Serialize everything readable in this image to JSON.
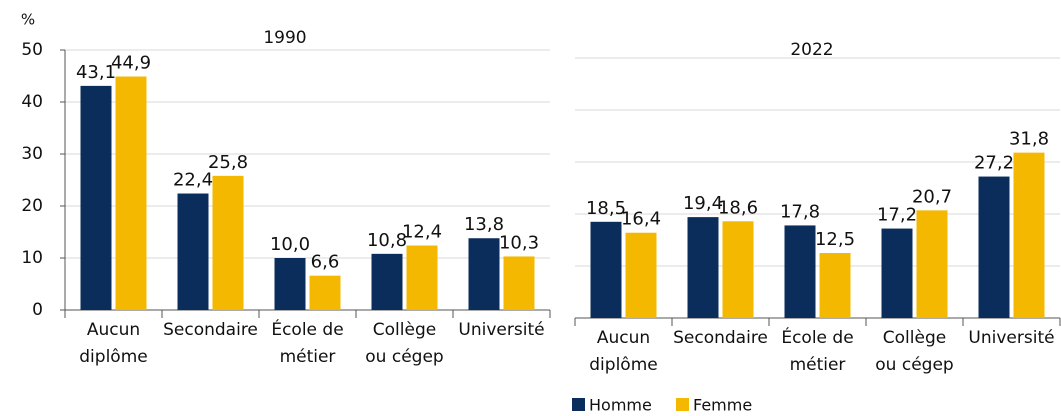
{
  "chart_data": [
    {
      "type": "bar",
      "title": "1990",
      "y_label": "%",
      "categories": [
        "Aucun\ndiplôme",
        "Secondaire",
        "École de\nmétier",
        "Collège\nou cégep",
        "Université"
      ],
      "series": [
        {
          "color": "#0b2d5b",
          "values": [
            43.1,
            22.4,
            10.0,
            10.8,
            13.8
          ],
          "value_labels": [
            "43,1",
            "22,4",
            "10,0",
            "10,8",
            "13,8"
          ]
        },
        {
          "color": "#f5b800",
          "values": [
            44.9,
            25.8,
            6.6,
            12.4,
            10.3
          ],
          "value_labels": [
            "44,9",
            "25,8",
            "6,6",
            "12,4",
            "10,3"
          ]
        }
      ],
      "ylim": [
        0,
        50
      ],
      "yticks": [
        0,
        10,
        20,
        30,
        40,
        50
      ],
      "grid": true
    },
    {
      "type": "bar",
      "title": "2022",
      "categories": [
        "Aucun\ndiplôme",
        "Secondaire",
        "École de\nmétier",
        "Collège\nou cégep",
        "Université"
      ],
      "series": [
        {
          "name": "Homme",
          "color": "#0b2d5b",
          "values": [
            18.5,
            19.4,
            17.8,
            17.2,
            27.2
          ],
          "value_labels": [
            "18,5",
            "19,4",
            "17,8",
            "17,2",
            "27,2"
          ]
        },
        {
          "name": "Femme",
          "color": "#f5b800",
          "values": [
            16.4,
            18.6,
            12.5,
            20.7,
            31.8
          ],
          "value_labels": [
            "16,4",
            "18,6",
            "12,5",
            "20,7",
            "31,8"
          ]
        }
      ],
      "ylim": [
        0,
        50
      ],
      "yticks": [
        0,
        10,
        20,
        30,
        40,
        50
      ],
      "grid": true
    }
  ]
}
